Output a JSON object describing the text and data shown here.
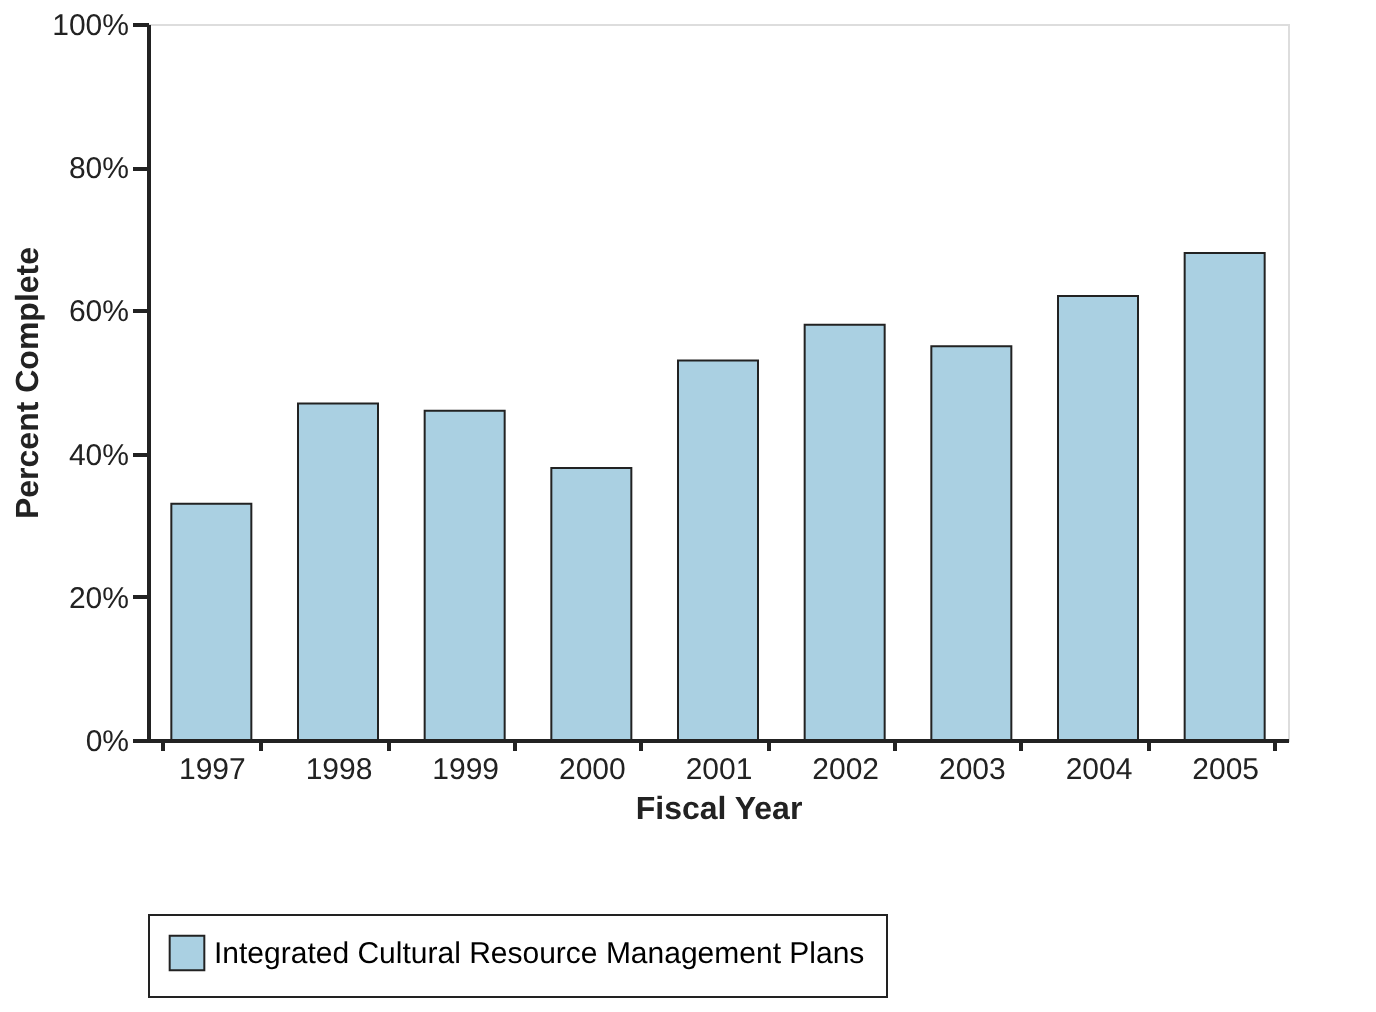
{
  "chart_data": {
    "type": "bar",
    "xlabel": "Fiscal Year",
    "ylabel": "Percent Complete",
    "categories": [
      "1997",
      "1998",
      "1999",
      "2000",
      "2001",
      "2002",
      "2003",
      "2004",
      "2005"
    ],
    "series": [
      {
        "name": "Integrated Cultural Resource Management Plans",
        "color": "#aad0e2",
        "values": [
          33,
          47,
          46,
          38,
          53,
          58,
          55,
          62,
          68
        ]
      }
    ],
    "ylim": [
      0,
      100
    ],
    "yticks": [
      {
        "value": 0,
        "label": "0%"
      },
      {
        "value": 20,
        "label": "20%"
      },
      {
        "value": 40,
        "label": "40%"
      },
      {
        "value": 60,
        "label": "60%"
      },
      {
        "value": 80,
        "label": "80%"
      },
      {
        "value": 100,
        "label": "100%"
      }
    ],
    "grid": false,
    "legend": "bottom"
  }
}
